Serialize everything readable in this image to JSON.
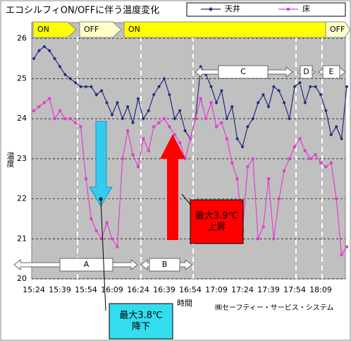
{
  "chart_data": {
    "type": "line",
    "title": "エコシルフィON/OFFに伴う温度変化",
    "y_label": "温度",
    "x_label": "時間",
    "footer": "㈱セーフティー・サービス・システム",
    "categories": [
      "15:24",
      null,
      null,
      null,
      null,
      "15:39",
      null,
      null,
      null,
      null,
      "15:54",
      null,
      null,
      null,
      null,
      "16:09",
      null,
      null,
      null,
      null,
      "16:24",
      null,
      null,
      null,
      null,
      "16:39",
      null,
      null,
      null,
      null,
      "16:54",
      null,
      null,
      null,
      null,
      "17:09",
      null,
      null,
      null,
      null,
      "17:24",
      null,
      null,
      null,
      null,
      "17:39",
      null,
      null,
      null,
      null,
      "17:54",
      null,
      null,
      null,
      null,
      "18:09",
      null,
      null,
      null,
      null,
      null
    ],
    "series": [
      {
        "name": "天井",
        "color": "#1f2a80",
        "marker": "diamond",
        "values": [
          25.5,
          25.7,
          25.8,
          25.7,
          25.5,
          25.3,
          25.1,
          25.0,
          24.9,
          24.8,
          24.8,
          24.8,
          24.6,
          24.7,
          24.4,
          24.1,
          24.4,
          24.0,
          24.3,
          23.9,
          24.5,
          24.0,
          24.2,
          24.6,
          24.8,
          25.0,
          24.6,
          24.0,
          24.2,
          23.7,
          23.5,
          24.0,
          25.3,
          25.1,
          24.8,
          24.4,
          24.7,
          24.0,
          24.3,
          23.5,
          23.3,
          23.8,
          24.0,
          24.4,
          24.6,
          24.3,
          24.8,
          24.7,
          24.4,
          24.0,
          24.8,
          24.9,
          24.4,
          24.8,
          24.8,
          24.6,
          24.2,
          23.6,
          23.8,
          23.5,
          24.8
        ]
      },
      {
        "name": "床",
        "color": "#e040d0",
        "marker": "square",
        "values": [
          24.2,
          24.3,
          24.4,
          24.5,
          24.0,
          24.2,
          24.0,
          24.0,
          23.9,
          23.8,
          22.5,
          21.5,
          21.2,
          21.0,
          21.4,
          21.0,
          20.8,
          23.0,
          23.7,
          23.1,
          22.8,
          23.5,
          23.2,
          23.8,
          23.9,
          24.0,
          23.8,
          23.6,
          23.4,
          23.0,
          23.5,
          24.0,
          24.5,
          24.0,
          24.4,
          23.8,
          23.9,
          23.5,
          22.9,
          22.5,
          21.2,
          22.8,
          23.0,
          21.0,
          21.3,
          22.5,
          21.0,
          22.0,
          22.7,
          23.0,
          23.3,
          23.5,
          23.2,
          23.0,
          23.1,
          22.9,
          22.8,
          22.9,
          22.0,
          20.6,
          20.8
        ]
      }
    ],
    "ylim": [
      20,
      26.4
    ],
    "yticks": [
      20,
      21,
      22,
      23,
      24,
      25,
      26
    ],
    "grid": true,
    "legend": "top-right",
    "phases": [
      "ON",
      "OFF",
      "ON",
      "OFF"
    ],
    "segments": [
      "A",
      "B",
      "C",
      "D",
      "E"
    ],
    "notes": [
      [
        "最大3.9℃",
        "上昇"
      ],
      [
        "最大3.8℃",
        "降下"
      ]
    ]
  }
}
